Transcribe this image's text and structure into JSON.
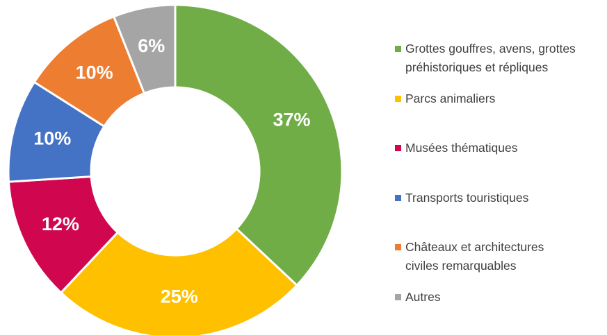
{
  "chart_data": {
    "type": "donut",
    "categories": [
      "Grottes gouffres, avens, grottes préhistoriques et répliques",
      "Parcs animaliers",
      "Musées thématiques",
      "Transports touristiques",
      "Châteaux et architectures civiles remarquables",
      "Autres"
    ],
    "values": [
      37,
      25,
      12,
      10,
      10,
      6
    ],
    "value_labels": [
      "37%",
      "25%",
      "12%",
      "10%",
      "10%",
      "6%"
    ],
    "colors": [
      "#70ad47",
      "#ffc000",
      "#d0074e",
      "#4472c4",
      "#ed7d31",
      "#a5a5a5"
    ],
    "legend": "right"
  }
}
